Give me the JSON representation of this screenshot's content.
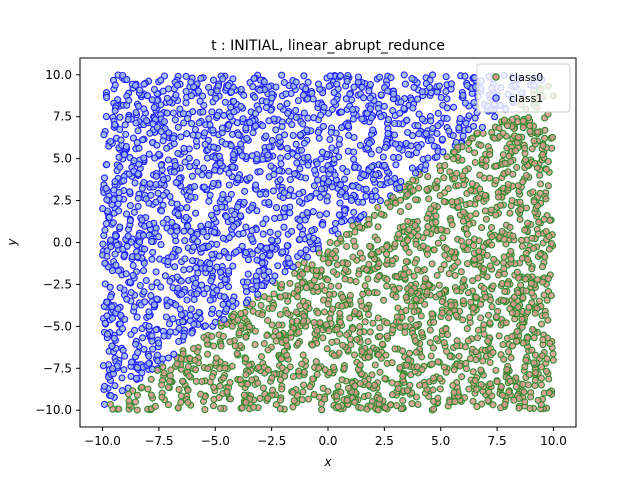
{
  "chart_data": {
    "type": "scatter",
    "title": "t : INITIAL, linear_abrupt_redunce",
    "xlabel": "x",
    "ylabel": "y",
    "xlim": [
      -11,
      11
    ],
    "ylim": [
      -11,
      11
    ],
    "xticks": [
      "−10.0",
      "−7.5",
      "−5.0",
      "−2.5",
      "0.0",
      "2.5",
      "5.0",
      "7.5",
      "10.0"
    ],
    "yticks": [
      "−10.0",
      "−7.5",
      "−5.0",
      "−2.5",
      "0.0",
      "2.5",
      "5.0",
      "7.5",
      "10.0"
    ],
    "xtick_values": [
      -10,
      -7.5,
      -5,
      -2.5,
      0,
      2.5,
      5,
      7.5,
      10
    ],
    "ytick_values": [
      -10,
      -7.5,
      -5,
      -2.5,
      0,
      2.5,
      5,
      7.5,
      10
    ],
    "grid": false,
    "legend_position": "top-right",
    "decision_boundary": {
      "x": [
        -10,
        10
      ],
      "y": [
        -10,
        10
      ]
    },
    "series": [
      {
        "name": "class0",
        "region": "below line y = x",
        "x_range": [
          -10,
          10
        ],
        "y_range": [
          -10,
          10
        ],
        "face_color": "#d8968c",
        "edge_color": "#2e8b2e",
        "sample_points": [
          [
            0.0,
            -2.5
          ],
          [
            5.0,
            0.0
          ],
          [
            7.5,
            -5.0
          ],
          [
            2.5,
            -7.5
          ],
          [
            -5.0,
            -7.5
          ],
          [
            9.0,
            8.0
          ],
          [
            -9.0,
            -9.9
          ],
          [
            6.0,
            -9.5
          ]
        ]
      },
      {
        "name": "class1",
        "region": "above line y = x",
        "x_range": [
          -10,
          10
        ],
        "y_range": [
          -10,
          10
        ],
        "face_color": "#9db8e8",
        "edge_color": "#1f1fff",
        "sample_points": [
          [
            -7.5,
            5.0
          ],
          [
            -5.0,
            0.0
          ],
          [
            0.0,
            7.5
          ],
          [
            -9.0,
            -5.0
          ],
          [
            5.0,
            9.5
          ],
          [
            -2.5,
            2.5
          ],
          [
            -9.8,
            -9.5
          ],
          [
            8.0,
            9.8
          ]
        ]
      }
    ]
  }
}
